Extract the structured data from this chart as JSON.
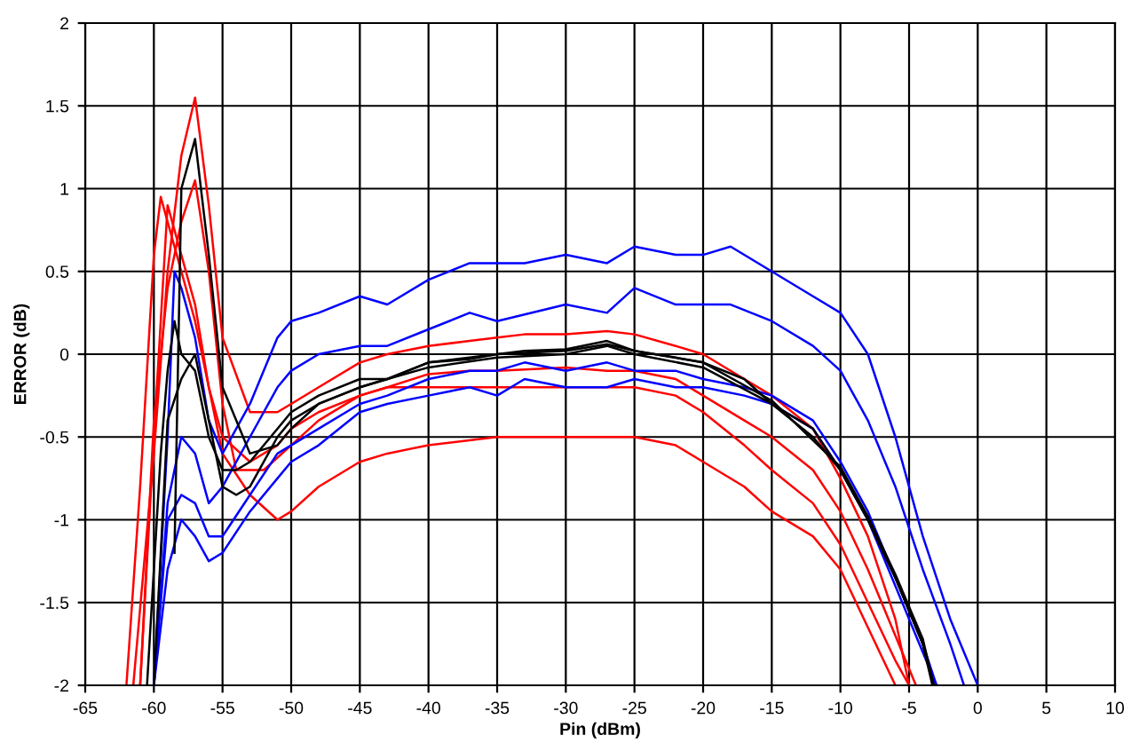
{
  "chart_data": {
    "type": "line",
    "xlabel": "Pin (dBm)",
    "ylabel": "ERROR (dB)",
    "xlim": [
      -65,
      10
    ],
    "ylim": [
      -2,
      2
    ],
    "xticks": [
      -65,
      -60,
      -55,
      -50,
      -45,
      -40,
      -35,
      -30,
      -25,
      -20,
      -15,
      -10,
      -5,
      0,
      5,
      10
    ],
    "yticks": [
      -2,
      -1.5,
      -1,
      -0.5,
      0,
      0.5,
      1,
      1.5,
      2
    ],
    "grid": true,
    "marker": "none",
    "line_style": "solid",
    "series": [
      {
        "color": "#ff0000",
        "x": [
          -61.5,
          -60,
          -59,
          -58,
          -57,
          -56,
          -55,
          -53,
          -51,
          -50,
          -48,
          -45,
          -43,
          -40,
          -37,
          -35,
          -33,
          -30,
          -27,
          -25,
          -22,
          -20,
          -17,
          -15,
          -12,
          -10,
          -8,
          -6,
          -5
        ],
        "values": [
          -2,
          -0.6,
          0.5,
          1.2,
          1.55,
          0.9,
          0.1,
          -0.35,
          -0.35,
          -0.3,
          -0.2,
          -0.05,
          0.0,
          0.05,
          0.08,
          0.1,
          0.12,
          0.12,
          0.14,
          0.12,
          0.05,
          0.0,
          -0.15,
          -0.25,
          -0.45,
          -0.75,
          -1.1,
          -1.6,
          -2
        ]
      },
      {
        "color": "#ff0000",
        "x": [
          -61,
          -60,
          -59,
          -58,
          -57,
          -56,
          -55,
          -54,
          -52,
          -50,
          -48,
          -45,
          -43,
          -40,
          -37,
          -35,
          -30,
          -27,
          -25,
          -22,
          -20,
          -17,
          -15,
          -12,
          -10,
          -8,
          -6,
          -4.5
        ],
        "values": [
          -2,
          -0.4,
          0.4,
          0.8,
          1.05,
          0.5,
          -0.3,
          -0.7,
          -0.7,
          -0.55,
          -0.4,
          -0.25,
          -0.2,
          -0.12,
          -0.1,
          -0.1,
          -0.08,
          -0.1,
          -0.1,
          -0.15,
          -0.25,
          -0.4,
          -0.5,
          -0.7,
          -0.95,
          -1.3,
          -1.7,
          -2
        ]
      },
      {
        "color": "#ff0000",
        "x": [
          -62,
          -61,
          -60,
          -59.5,
          -59,
          -58,
          -57,
          -56,
          -55,
          -53,
          -51,
          -50,
          -48,
          -45,
          -43,
          -40,
          -37,
          -35,
          -30,
          -25,
          -22,
          -20,
          -17,
          -15,
          -12,
          -10,
          -8,
          -6,
          -5
        ],
        "values": [
          -2,
          -0.8,
          0.6,
          0.95,
          0.8,
          0.5,
          0.2,
          -0.2,
          -0.5,
          -0.65,
          -0.55,
          -0.45,
          -0.35,
          -0.25,
          -0.2,
          -0.2,
          -0.2,
          -0.2,
          -0.2,
          -0.2,
          -0.25,
          -0.35,
          -0.55,
          -0.7,
          -0.9,
          -1.15,
          -1.5,
          -1.85,
          -2
        ]
      },
      {
        "color": "#ff0000",
        "x": [
          -61,
          -60,
          -59,
          -58,
          -57,
          -56,
          -55,
          -53,
          -51,
          -50,
          -48,
          -45,
          -43,
          -40,
          -35,
          -30,
          -25,
          -22,
          -20,
          -17,
          -15,
          -12,
          -10,
          -8,
          -6
        ],
        "values": [
          -2,
          -0.5,
          0.9,
          0.6,
          0.3,
          -0.2,
          -0.6,
          -0.85,
          -1.0,
          -0.95,
          -0.8,
          -0.65,
          -0.6,
          -0.55,
          -0.5,
          -0.5,
          -0.5,
          -0.55,
          -0.65,
          -0.8,
          -0.95,
          -1.1,
          -1.3,
          -1.65,
          -2
        ]
      },
      {
        "color": "#0000ff",
        "x": [
          -60,
          -59,
          -58.5,
          -58,
          -57,
          -56,
          -55,
          -53,
          -51,
          -50,
          -48,
          -45,
          -43,
          -40,
          -37,
          -33,
          -30,
          -27,
          -25,
          -22,
          -20,
          -18,
          -15,
          -12,
          -10,
          -8,
          -6,
          -4,
          -2,
          0
        ],
        "values": [
          -2,
          -0.5,
          0.5,
          0.4,
          0.1,
          -0.4,
          -0.6,
          -0.3,
          0.1,
          0.2,
          0.25,
          0.35,
          0.3,
          0.45,
          0.55,
          0.55,
          0.6,
          0.55,
          0.65,
          0.6,
          0.6,
          0.65,
          0.5,
          0.35,
          0.25,
          0.0,
          -0.5,
          -1.1,
          -1.6,
          -2
        ]
      },
      {
        "color": "#0000ff",
        "x": [
          -60,
          -59,
          -58,
          -57,
          -56,
          -55,
          -53,
          -51,
          -50,
          -48,
          -45,
          -43,
          -40,
          -37,
          -35,
          -30,
          -27,
          -25,
          -22,
          -20,
          -18,
          -15,
          -12,
          -10,
          -8,
          -6,
          -4,
          -2,
          -1
        ],
        "values": [
          -2,
          -0.9,
          -0.5,
          -0.6,
          -0.9,
          -0.8,
          -0.5,
          -0.2,
          -0.1,
          0.0,
          0.05,
          0.05,
          0.15,
          0.25,
          0.2,
          0.3,
          0.25,
          0.4,
          0.3,
          0.3,
          0.3,
          0.2,
          0.05,
          -0.1,
          -0.4,
          -0.8,
          -1.3,
          -1.75,
          -2
        ]
      },
      {
        "color": "#0000ff",
        "x": [
          -60,
          -59,
          -58,
          -57,
          -56,
          -55,
          -53,
          -51,
          -50,
          -48,
          -45,
          -43,
          -40,
          -37,
          -35,
          -33,
          -30,
          -27,
          -25,
          -22,
          -20,
          -17,
          -15,
          -12,
          -10,
          -8,
          -6,
          -4,
          -3
        ],
        "values": [
          -2,
          -1.3,
          -1.0,
          -1.1,
          -1.25,
          -1.2,
          -0.95,
          -0.75,
          -0.65,
          -0.55,
          -0.35,
          -0.3,
          -0.25,
          -0.2,
          -0.25,
          -0.15,
          -0.2,
          -0.2,
          -0.15,
          -0.2,
          -0.2,
          -0.25,
          -0.3,
          -0.45,
          -0.7,
          -1.0,
          -1.4,
          -1.8,
          -2
        ]
      },
      {
        "color": "#0000ff",
        "x": [
          -60,
          -59,
          -58,
          -57,
          -56,
          -55,
          -53,
          -51,
          -50,
          -48,
          -45,
          -43,
          -40,
          -37,
          -35,
          -33,
          -30,
          -27,
          -25,
          -22,
          -20,
          -17,
          -15,
          -12,
          -10,
          -8,
          -6,
          -4,
          -3
        ],
        "values": [
          -2,
          -1.0,
          -0.85,
          -0.9,
          -1.1,
          -1.1,
          -0.85,
          -0.6,
          -0.55,
          -0.45,
          -0.3,
          -0.25,
          -0.15,
          -0.1,
          -0.1,
          -0.05,
          -0.1,
          -0.05,
          -0.1,
          -0.1,
          -0.15,
          -0.2,
          -0.25,
          -0.4,
          -0.65,
          -0.95,
          -1.35,
          -1.75,
          -2
        ]
      },
      {
        "color": "#000000",
        "x": [
          -60.5,
          -59.5,
          -59,
          -58.5,
          -58,
          -57,
          -56,
          -55,
          -54,
          -53,
          -51,
          -50,
          -48,
          -45,
          -43,
          -40,
          -37,
          -35,
          -33,
          -30,
          -27,
          -25,
          -22,
          -20,
          -17,
          -15,
          -12,
          -10,
          -8,
          -6,
          -4,
          -3.3
        ],
        "values": [
          -2,
          -0.6,
          -0.1,
          0.2,
          0.0,
          -0.1,
          -0.5,
          -0.7,
          -0.7,
          -0.65,
          -0.45,
          -0.35,
          -0.25,
          -0.15,
          -0.15,
          -0.05,
          -0.03,
          0.0,
          0.02,
          0.03,
          0.08,
          0.02,
          -0.02,
          -0.05,
          -0.15,
          -0.3,
          -0.45,
          -0.7,
          -1.0,
          -1.35,
          -1.75,
          -2
        ]
      },
      {
        "color": "#000000",
        "x": [
          -60,
          -59,
          -58,
          -57,
          -56,
          -55,
          -54,
          -53,
          -51,
          -50,
          -48,
          -45,
          -43,
          -40,
          -35,
          -30,
          -27,
          -25,
          -20,
          -15,
          -12,
          -10,
          -8,
          -6,
          -4,
          -3.2
        ],
        "values": [
          -2,
          -0.4,
          -0.15,
          0.0,
          -0.4,
          -0.8,
          -0.85,
          -0.8,
          -0.5,
          -0.4,
          -0.3,
          -0.2,
          -0.15,
          -0.08,
          -0.02,
          0.0,
          0.05,
          0.0,
          -0.08,
          -0.3,
          -0.5,
          -0.7,
          -1.0,
          -1.35,
          -1.75,
          -2
        ]
      },
      {
        "color": "#000000",
        "x": [
          -58.5,
          -58,
          -57,
          -56,
          -55,
          -53,
          -51,
          -50,
          -48,
          -45,
          -43,
          -40,
          -35,
          -30,
          -27,
          -25,
          -20,
          -15,
          -10,
          -8,
          -6,
          -4,
          -3.2
        ],
        "values": [
          -1.2,
          1.0,
          1.3,
          0.6,
          -0.2,
          -0.6,
          -0.55,
          -0.45,
          -0.3,
          -0.2,
          -0.15,
          -0.05,
          0.0,
          0.02,
          0.06,
          0.02,
          -0.05,
          -0.28,
          -0.68,
          -0.98,
          -1.33,
          -1.72,
          -2
        ]
      }
    ]
  }
}
